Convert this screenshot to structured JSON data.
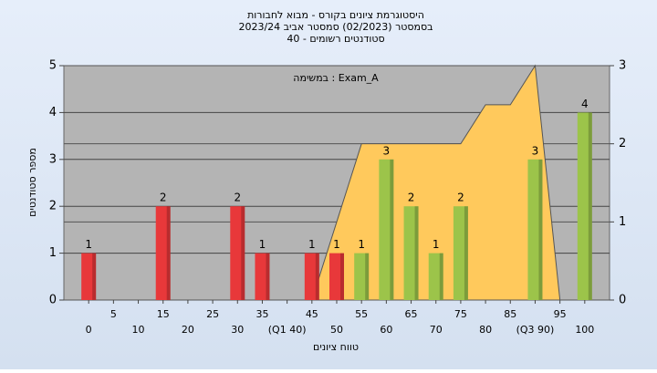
{
  "chart_data": {
    "type": "bar",
    "title": "היסטוגרמת ציונים בקורס - מבוא לחבורות",
    "subtitles": [
      "בסמסטר  (02/2023)  סמסטר אביב 2023/24",
      "סטודנטים רשומים - 40"
    ],
    "annotation": "במשימה : Exam_A",
    "x_label": "טווח ציונים",
    "y_label": "מספר סטודנטים",
    "x": [
      0,
      5,
      10,
      15,
      20,
      25,
      30,
      35,
      40,
      45,
      50,
      55,
      60,
      65,
      70,
      75,
      80,
      85,
      90,
      95,
      100
    ],
    "xlim": [
      -5,
      105
    ],
    "xticks": [
      0,
      5,
      10,
      15,
      20,
      25,
      30,
      35,
      {
        "value": 40,
        "label": "(Q1 40)"
      },
      45,
      50,
      55,
      60,
      65,
      70,
      75,
      80,
      85,
      {
        "value": 90,
        "label": "(Q3 90)"
      },
      95,
      100
    ],
    "ylim": [
      0,
      5
    ],
    "yticks": [
      0,
      1,
      2,
      3,
      4,
      5
    ],
    "y2lim": [
      0,
      3
    ],
    "y2ticks": [
      0,
      1,
      2,
      3
    ],
    "grid": true,
    "series": [
      {
        "type": "bar",
        "values": [
          1,
          0,
          0,
          2,
          0,
          0,
          2,
          1,
          0,
          1,
          1,
          1,
          3,
          2,
          1,
          2,
          0,
          0,
          3,
          0,
          4
        ],
        "colors": [
          "#e8383a",
          "#e8383a",
          "#e8383a",
          "#e8383a",
          "#e8383a",
          "#e8383a",
          "#e8383a",
          "#e8383a",
          "#e8383a",
          "#e8383a",
          "#e8383a",
          "#9cc44a",
          "#9cc44a",
          "#9cc44a",
          "#9cc44a",
          "#9cc44a",
          "#9cc44a",
          "#9cc44a",
          "#9cc44a",
          "#9cc44a",
          "#9cc44a"
        ]
      },
      {
        "type": "area",
        "axis": "y2",
        "color": "#ffc95c",
        "values": [
          null,
          null,
          null,
          null,
          null,
          null,
          null,
          null,
          null,
          0,
          1,
          2,
          2,
          2,
          2,
          2,
          2.5,
          2.5,
          3,
          0,
          null
        ]
      }
    ]
  }
}
